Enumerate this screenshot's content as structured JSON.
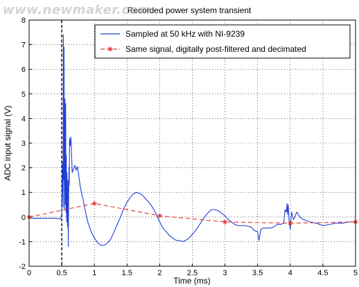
{
  "watermark": "www.newmaker.com",
  "chart_data": {
    "type": "line",
    "title": "Recorded power system transient",
    "xlabel": "Time (ms)",
    "ylabel": "ADC input signal (V)",
    "xlim": [
      0,
      5
    ],
    "ylim": [
      -2,
      8
    ],
    "xticks": [
      0,
      0.5,
      1,
      1.5,
      2,
      2.5,
      3,
      3.5,
      4,
      4.5,
      5
    ],
    "xtick_labels": [
      "0",
      "0.5",
      "1",
      "1.5",
      "2",
      "2.5",
      "3",
      "3.5",
      "4",
      "4.5",
      "5"
    ],
    "yticks": [
      -2,
      -1,
      0,
      1,
      2,
      3,
      4,
      5,
      6,
      7,
      8
    ],
    "ytick_labels": [
      "-2",
      "-1",
      "0",
      "1",
      "2",
      "3",
      "4",
      "5",
      "6",
      "7",
      "8"
    ],
    "grid": true,
    "legend_position": "top-right",
    "series": [
      {
        "name": "Sampled at 50 kHz with NI-9239",
        "color": "#1f3fd6",
        "style": "solid",
        "x": [
          0,
          0.1,
          0.2,
          0.3,
          0.4,
          0.48,
          0.5,
          0.51,
          0.52,
          0.525,
          0.53,
          0.535,
          0.54,
          0.545,
          0.55,
          0.555,
          0.56,
          0.565,
          0.57,
          0.575,
          0.58,
          0.585,
          0.59,
          0.595,
          0.6,
          0.605,
          0.61,
          0.615,
          0.62,
          0.63,
          0.64,
          0.65,
          0.66,
          0.68,
          0.7,
          0.72,
          0.74,
          0.76,
          0.78,
          0.8,
          0.82,
          0.85,
          0.88,
          0.9,
          0.95,
          1.0,
          1.05,
          1.1,
          1.15,
          1.2,
          1.25,
          1.3,
          1.35,
          1.4,
          1.45,
          1.5,
          1.55,
          1.6,
          1.65,
          1.7,
          1.75,
          1.8,
          1.85,
          1.9,
          1.95,
          2.0,
          2.05,
          2.1,
          2.15,
          2.2,
          2.25,
          2.3,
          2.35,
          2.4,
          2.45,
          2.5,
          2.55,
          2.6,
          2.65,
          2.7,
          2.75,
          2.8,
          2.85,
          2.9,
          2.95,
          3.0,
          3.05,
          3.1,
          3.15,
          3.2,
          3.3,
          3.4,
          3.45,
          3.5,
          3.52,
          3.55,
          3.58,
          3.6,
          3.65,
          3.7,
          3.75,
          3.8,
          3.85,
          3.9,
          3.92,
          3.94,
          3.95,
          3.96,
          3.97,
          3.98,
          4.0,
          4.02,
          4.05,
          4.1,
          4.15,
          4.2,
          4.3,
          4.4,
          4.5,
          4.6,
          4.7,
          4.8,
          4.9,
          5.0
        ],
        "y": [
          -0.05,
          -0.05,
          -0.05,
          -0.05,
          -0.05,
          -0.08,
          0.1,
          2.2,
          0.4,
          7.4,
          1.5,
          6.9,
          0.3,
          2.2,
          4.8,
          0.5,
          4.6,
          0.2,
          2.5,
          -0.2,
          1.8,
          0.6,
          -0.4,
          1.5,
          -1.2,
          0.5,
          2.0,
          1.3,
          3.2,
          2.9,
          3.25,
          2.6,
          1.8,
          1.95,
          2.1,
          1.9,
          2.05,
          1.7,
          1.3,
          1.0,
          0.8,
          0.4,
          0.0,
          -0.2,
          -0.6,
          -0.85,
          -1.05,
          -1.15,
          -1.15,
          -1.05,
          -0.9,
          -0.6,
          -0.3,
          0.0,
          0.35,
          0.6,
          0.8,
          0.95,
          1.0,
          0.95,
          0.85,
          0.7,
          0.55,
          0.35,
          0.1,
          -0.2,
          -0.45,
          -0.6,
          -0.75,
          -0.85,
          -0.95,
          -0.95,
          -1.0,
          -0.95,
          -0.85,
          -0.7,
          -0.55,
          -0.35,
          -0.15,
          0.05,
          0.2,
          0.3,
          0.3,
          0.25,
          0.15,
          0.05,
          -0.1,
          -0.2,
          -0.3,
          -0.35,
          -0.35,
          -0.4,
          -0.55,
          -0.6,
          -0.95,
          -0.5,
          -0.45,
          -0.45,
          -0.45,
          -0.45,
          -0.4,
          -0.3,
          -0.3,
          -0.25,
          0.3,
          0.2,
          0.55,
          0.1,
          0.5,
          -0.1,
          -0.5,
          0.2,
          -0.1,
          0.2,
          0.0,
          -0.1,
          -0.2,
          -0.25,
          -0.35,
          -0.3,
          -0.25,
          -0.25,
          -0.2,
          -0.2
        ]
      },
      {
        "name": "Same signal, digitally post-filtered and decimated",
        "color": "#e0302a",
        "style": "dashed",
        "marker": "asterisk",
        "x": [
          0,
          1,
          2,
          3,
          4,
          5
        ],
        "y": [
          0.0,
          0.55,
          0.05,
          -0.2,
          -0.25,
          -0.2
        ]
      }
    ],
    "annotations": [
      {
        "type": "vline",
        "x": 0.5,
        "color": "#000000",
        "style": "dashed"
      }
    ]
  }
}
